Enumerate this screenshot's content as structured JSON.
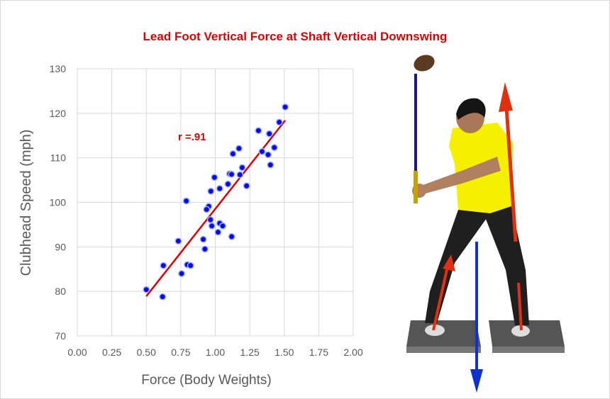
{
  "chart_data": {
    "type": "scatter",
    "title": "Lead Foot Vertical Force at Shaft Vertical Downswing",
    "xlabel": "Force (Body Weights)",
    "ylabel": "Clubhead Speed (mph)",
    "xlim": [
      0,
      2
    ],
    "ylim": [
      70,
      130
    ],
    "xticks": [
      "0.00",
      "0.25",
      "0.50",
      "0.75",
      "1.00",
      "1.25",
      "1.50",
      "1.75",
      "2.00"
    ],
    "yticks": [
      "70",
      "80",
      "90",
      "100",
      "110",
      "120",
      "130"
    ],
    "grid": true,
    "annotation": "r =.91",
    "colors": {
      "points": "#0a0ae6",
      "trendline": "#e00000",
      "title": "#e00000",
      "grid": "#d9d9d9"
    },
    "points": [
      [
        1.507,
        121.4
      ],
      [
        1.464,
        118.0
      ],
      [
        1.313,
        116.1
      ],
      [
        1.392,
        115.4
      ],
      [
        1.172,
        112.1
      ],
      [
        1.128,
        110.9
      ],
      [
        1.339,
        111.4
      ],
      [
        1.428,
        112.3
      ],
      [
        1.383,
        110.7
      ],
      [
        1.4,
        108.4
      ],
      [
        1.195,
        107.8
      ],
      [
        1.179,
        106.2
      ],
      [
        1.104,
        106.4
      ],
      [
        1.118,
        106.3
      ],
      [
        0.994,
        105.6
      ],
      [
        1.092,
        104.1
      ],
      [
        1.227,
        103.7
      ],
      [
        1.032,
        103.1
      ],
      [
        0.968,
        102.5
      ],
      [
        0.79,
        100.3
      ],
      [
        0.953,
        99.1
      ],
      [
        0.937,
        98.4
      ],
      [
        0.965,
        96.1
      ],
      [
        0.975,
        94.7
      ],
      [
        1.032,
        95.3
      ],
      [
        1.054,
        94.7
      ],
      [
        1.02,
        93.3
      ],
      [
        1.119,
        92.3
      ],
      [
        0.913,
        91.7
      ],
      [
        0.732,
        91.3
      ],
      [
        0.925,
        89.5
      ],
      [
        0.624,
        85.8
      ],
      [
        0.797,
        86.0
      ],
      [
        0.821,
        85.8
      ],
      [
        0.756,
        84.0
      ],
      [
        0.5,
        80.4
      ],
      [
        0.618,
        78.8
      ]
    ],
    "trendline": [
      [
        0.5,
        78.9
      ],
      [
        1.507,
        118.4
      ]
    ]
  }
}
